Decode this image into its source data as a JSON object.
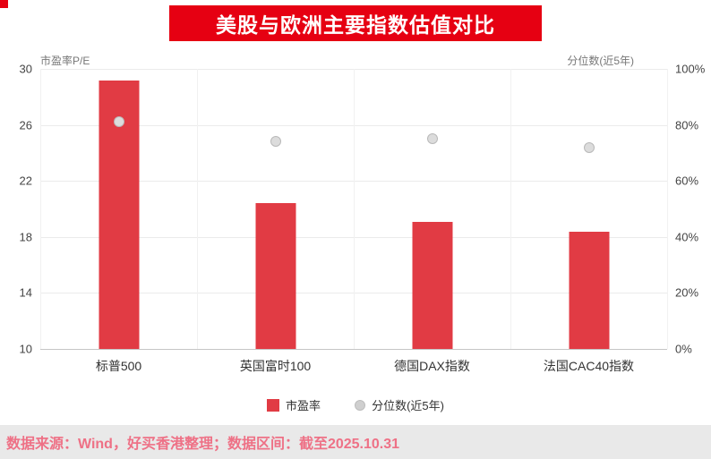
{
  "page": {
    "title": "美股与欧洲主要指数估值对比",
    "footer": "数据来源：Wind，好买香港整理；数据区间：截至2025.10.31"
  },
  "colors": {
    "banner_red": "#e60012",
    "bar_red": "#e13b44",
    "dot_gray": "#cfcfcf",
    "footer_text_pink": "#ee7186",
    "footer_bg": "#e9e9e9"
  },
  "chart_data": {
    "type": "bar",
    "title": "美股与欧洲主要指数估值对比",
    "categories": [
      "标普500",
      "英国富时100",
      "德国DAX指数",
      "法国CAC40指数"
    ],
    "series": [
      {
        "name": "市盈率",
        "type": "bar",
        "axis": "left",
        "values": [
          29.2,
          20.4,
          19.1,
          18.4
        ]
      },
      {
        "name": "分位数(近5年)",
        "type": "scatter",
        "axis": "right",
        "values": [
          81,
          74,
          75,
          72
        ]
      }
    ],
    "left_axis": {
      "label": "市盈率P/E",
      "min": 10,
      "max": 30,
      "ticks": [
        30,
        26,
        22,
        18,
        14,
        10
      ]
    },
    "right_axis": {
      "label": "分位数(近5年)",
      "min": 0,
      "max": 100,
      "ticks": [
        100,
        80,
        60,
        40,
        20,
        0
      ],
      "suffix": "%"
    },
    "legend": [
      "市盈率",
      "分位数(近5年)"
    ],
    "legend_position": "bottom",
    "grid": true
  }
}
